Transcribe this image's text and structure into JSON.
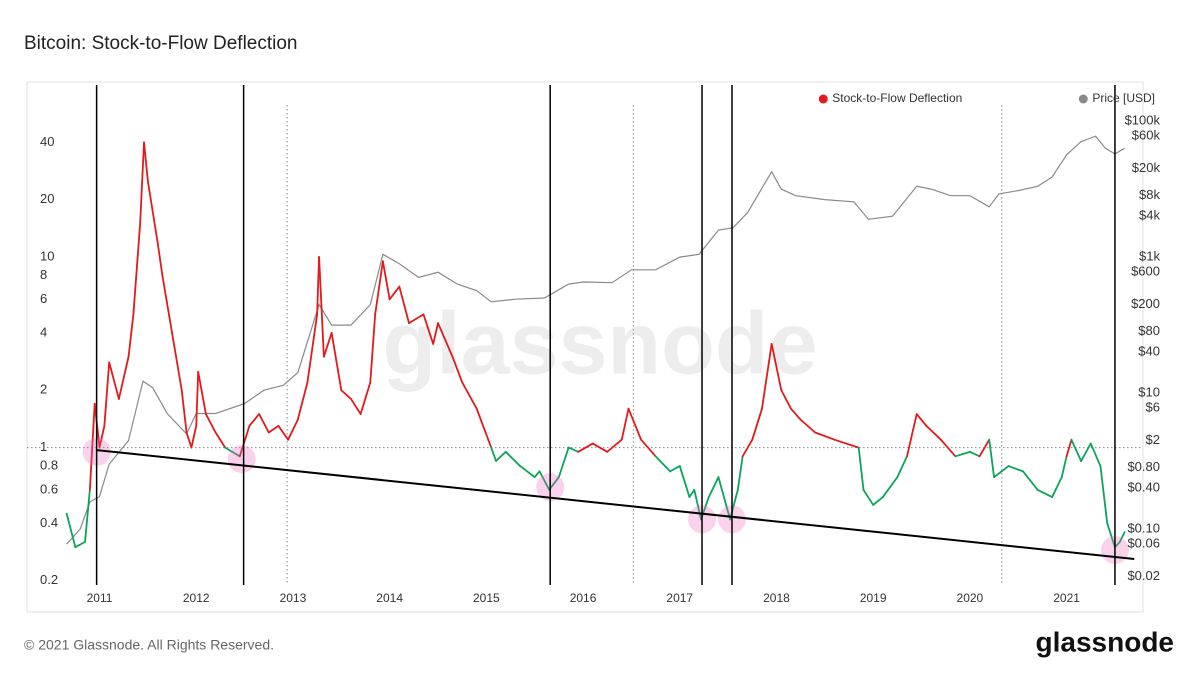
{
  "chart_data": {
    "type": "line",
    "title": "Bitcoin: Stock-to-Flow Deflection",
    "watermark": "glassnode",
    "footer": "© 2021 Glassnode. All Rights Reserved.",
    "logo": "glassnode",
    "xlim": [
      2010.25,
      2021.79
    ],
    "xticks": [
      2011,
      2012,
      2013,
      2014,
      2015,
      2016,
      2017,
      2018,
      2019,
      2020,
      2021
    ],
    "ylim": [
      0.19,
      80
    ],
    "yscale": "log",
    "yticks": [
      0.2,
      0.4,
      0.6,
      0.8,
      1,
      2,
      4,
      6,
      8,
      10,
      20,
      40
    ],
    "y2lim": [
      0.015,
      340000
    ],
    "y2scale": "log",
    "y2ticks": [
      {
        "value": 100000,
        "label": "$100k"
      },
      {
        "value": 60000,
        "label": "$60k"
      },
      {
        "value": 20000,
        "label": "$20k"
      },
      {
        "value": 8000,
        "label": "$8k"
      },
      {
        "value": 4000,
        "label": "$4k"
      },
      {
        "value": 1000,
        "label": "$1k"
      },
      {
        "value": 600,
        "label": "$600"
      },
      {
        "value": 200,
        "label": "$200"
      },
      {
        "value": 80,
        "label": "$80"
      },
      {
        "value": 40,
        "label": "$40"
      },
      {
        "value": 10,
        "label": "$10"
      },
      {
        "value": 6,
        "label": "$6"
      },
      {
        "value": 2,
        "label": "$2"
      },
      {
        "value": 0.8,
        "label": "$0.80"
      },
      {
        "value": 0.4,
        "label": "$0.40"
      },
      {
        "value": 0.1,
        "label": "$0.10"
      },
      {
        "value": 0.06,
        "label": "$0.06"
      },
      {
        "value": 0.02,
        "label": "$0.02"
      }
    ],
    "legend": "top-right",
    "threshold": 1,
    "series": [
      {
        "name": "Stock-to-Flow Deflection",
        "color": "#e31a1c",
        "color_below": "#0aa55b",
        "x": [
          2010.66,
          2010.75,
          2010.85,
          2010.9,
          2010.95,
          2011.0,
          2011.05,
          2011.1,
          2011.2,
          2011.3,
          2011.35,
          2011.42,
          2011.46,
          2011.5,
          2011.6,
          2011.65,
          2011.75,
          2011.85,
          2011.9,
          2011.95,
          2012.0,
          2012.02,
          2012.1,
          2012.2,
          2012.3,
          2012.45,
          2012.55,
          2012.65,
          2012.75,
          2012.85,
          2012.95,
          2013.05,
          2013.15,
          2013.25,
          2013.27,
          2013.32,
          2013.4,
          2013.5,
          2013.6,
          2013.7,
          2013.8,
          2013.85,
          2013.93,
          2014.0,
          2014.1,
          2014.2,
          2014.35,
          2014.45,
          2014.5,
          2014.65,
          2014.75,
          2014.9,
          2015.05,
          2015.1,
          2015.2,
          2015.35,
          2015.5,
          2015.55,
          2015.65,
          2015.75,
          2015.85,
          2015.95,
          2016.1,
          2016.25,
          2016.4,
          2016.47,
          2016.6,
          2016.75,
          2016.9,
          2017.0,
          2017.1,
          2017.15,
          2017.22,
          2017.3,
          2017.4,
          2017.52,
          2017.6,
          2017.65,
          2017.75,
          2017.85,
          2017.95,
          2018.05,
          2018.15,
          2018.25,
          2018.4,
          2018.6,
          2018.85,
          2018.9,
          2019.0,
          2019.1,
          2019.25,
          2019.35,
          2019.45,
          2019.55,
          2019.7,
          2019.85,
          2020.0,
          2020.1,
          2020.2,
          2020.25,
          2020.4,
          2020.55,
          2020.7,
          2020.85,
          2020.95,
          2021.0,
          2021.05,
          2021.15,
          2021.25,
          2021.35,
          2021.42,
          2021.5,
          2021.55,
          2021.6
        ],
        "values": [
          0.45,
          0.3,
          0.32,
          0.6,
          1.7,
          1.0,
          1.3,
          2.8,
          1.8,
          3,
          5,
          15,
          40,
          25,
          12,
          8,
          4,
          2,
          1.2,
          1.0,
          1.3,
          2.5,
          1.5,
          1.2,
          1.0,
          0.9,
          1.3,
          1.5,
          1.2,
          1.3,
          1.1,
          1.4,
          2.2,
          5,
          10,
          3,
          4,
          2,
          1.8,
          1.5,
          2.2,
          5,
          9.5,
          6,
          7,
          4.5,
          5,
          3.5,
          4.5,
          3,
          2.2,
          1.6,
          1.0,
          0.85,
          0.95,
          0.8,
          0.7,
          0.75,
          0.6,
          0.7,
          1.0,
          0.95,
          1.05,
          0.95,
          1.1,
          1.6,
          1.1,
          0.9,
          0.75,
          0.8,
          0.55,
          0.6,
          0.42,
          0.55,
          0.7,
          0.42,
          0.6,
          0.9,
          1.1,
          1.6,
          3.5,
          2,
          1.6,
          1.4,
          1.2,
          1.1,
          1.0,
          0.6,
          0.5,
          0.55,
          0.7,
          0.9,
          1.5,
          1.3,
          1.1,
          0.9,
          0.95,
          0.9,
          1.1,
          0.7,
          0.8,
          0.75,
          0.6,
          0.55,
          0.7,
          0.9,
          1.1,
          0.85,
          1.05,
          0.8,
          0.4,
          0.3,
          0.32,
          0.36
        ]
      },
      {
        "name": "Price [USD]",
        "color": "#8a8a8a",
        "axis": "y2",
        "x": [
          2010.66,
          2010.8,
          2010.9,
          2011.0,
          2011.1,
          2011.3,
          2011.45,
          2011.55,
          2011.7,
          2011.9,
          2012.0,
          2012.2,
          2012.5,
          2012.7,
          2012.9,
          2013.05,
          2013.27,
          2013.4,
          2013.6,
          2013.8,
          2013.93,
          2014.1,
          2014.3,
          2014.5,
          2014.7,
          2014.9,
          2015.05,
          2015.3,
          2015.6,
          2015.85,
          2016.0,
          2016.3,
          2016.5,
          2016.75,
          2017.0,
          2017.2,
          2017.4,
          2017.55,
          2017.7,
          2017.95,
          2018.05,
          2018.2,
          2018.5,
          2018.8,
          2018.95,
          2019.2,
          2019.45,
          2019.6,
          2019.8,
          2020.0,
          2020.2,
          2020.3,
          2020.5,
          2020.7,
          2020.85,
          2021.0,
          2021.15,
          2021.3,
          2021.4,
          2021.5,
          2021.6
        ],
        "values": [
          0.06,
          0.1,
          0.25,
          0.3,
          0.9,
          2,
          15,
          12,
          5,
          2.5,
          5,
          5,
          7,
          11,
          13,
          20,
          200,
          100,
          100,
          200,
          1100,
          800,
          500,
          600,
          400,
          320,
          220,
          240,
          250,
          400,
          430,
          420,
          650,
          650,
          1000,
          1100,
          2500,
          2700,
          4500,
          18000,
          10000,
          8000,
          7000,
          6500,
          3600,
          4000,
          11000,
          10000,
          8000,
          8000,
          5500,
          8500,
          9500,
          11000,
          15000,
          32000,
          50000,
          60000,
          40000,
          33000,
          40000
        ]
      }
    ],
    "vlines": [
      2010.97,
      2012.49,
      2015.66,
      2017.23,
      2017.54,
      2021.5
    ],
    "halvings": [
      2012.94,
      2016.52,
      2020.33
    ],
    "trendline": {
      "x": [
        2010.97,
        2021.7
      ],
      "values": [
        0.97,
        0.26
      ]
    },
    "circles": {
      "x": [
        2010.97,
        2012.47,
        2015.66,
        2017.23,
        2017.54,
        2021.5
      ],
      "values": [
        0.95,
        0.87,
        0.62,
        0.42,
        0.42,
        0.29
      ]
    }
  }
}
